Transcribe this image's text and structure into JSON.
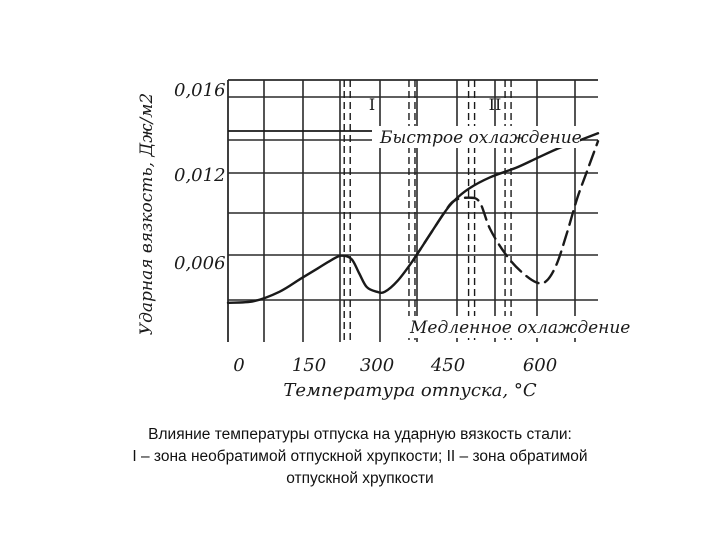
{
  "chart_data": {
    "type": "line",
    "xlabel": "Температура отпуска, °С",
    "ylabel": "Ударная вязкость, Дж/м2",
    "x_ticks": [
      "0",
      "150",
      "300",
      "450",
      "600"
    ],
    "y_ticks": [
      "0,016",
      "0,012",
      "0,006"
    ],
    "xlim": [
      0,
      720
    ],
    "zones": [
      {
        "label": "I",
        "x_start": 232,
        "x_end": 358
      },
      {
        "label": "II",
        "x_start": 474,
        "x_end": 545
      }
    ],
    "series": [
      {
        "name": "Быстрое охлаждение",
        "style": "solid",
        "points": [
          [
            0,
            0.0033
          ],
          [
            50,
            0.0034
          ],
          [
            100,
            0.004
          ],
          [
            140,
            0.0048
          ],
          [
            175,
            0.0055
          ],
          [
            200,
            0.006
          ],
          [
            220,
            0.0063
          ],
          [
            240,
            0.0061
          ],
          [
            255,
            0.0052
          ],
          [
            270,
            0.0043
          ],
          [
            290,
            0.004
          ],
          [
            305,
            0.004
          ],
          [
            330,
            0.0047
          ],
          [
            360,
            0.006
          ],
          [
            390,
            0.0075
          ],
          [
            420,
            0.009
          ],
          [
            440,
            0.0098
          ],
          [
            470,
            0.0106
          ],
          [
            510,
            0.0113
          ],
          [
            560,
            0.0119
          ],
          [
            600,
            0.0125
          ],
          [
            640,
            0.0131
          ],
          [
            680,
            0.0136
          ],
          [
            720,
            0.0141
          ]
        ]
      },
      {
        "name": "Медленное охлаждение",
        "style": "dashed",
        "points": [
          [
            360,
            0.006
          ],
          [
            390,
            0.0075
          ],
          [
            420,
            0.009
          ],
          [
            440,
            0.0098
          ],
          [
            470,
            0.01
          ],
          [
            490,
            0.0097
          ],
          [
            510,
            0.008
          ],
          [
            540,
            0.0064
          ],
          [
            570,
            0.0053
          ],
          [
            600,
            0.0046
          ],
          [
            620,
            0.0047
          ],
          [
            640,
            0.0058
          ],
          [
            660,
            0.0078
          ],
          [
            680,
            0.01
          ],
          [
            700,
            0.0118
          ],
          [
            720,
            0.0136
          ]
        ]
      }
    ]
  },
  "caption": {
    "line1": "Влияние температуры отпуска на ударную вязкость стали:",
    "line2": "I – зона необратимой отпускной хрупкости; II – зона обратимой",
    "line3": "отпускной хрупкости"
  },
  "colors": {
    "ink": "#1a1a1a",
    "grid": "#2a2a2a"
  }
}
